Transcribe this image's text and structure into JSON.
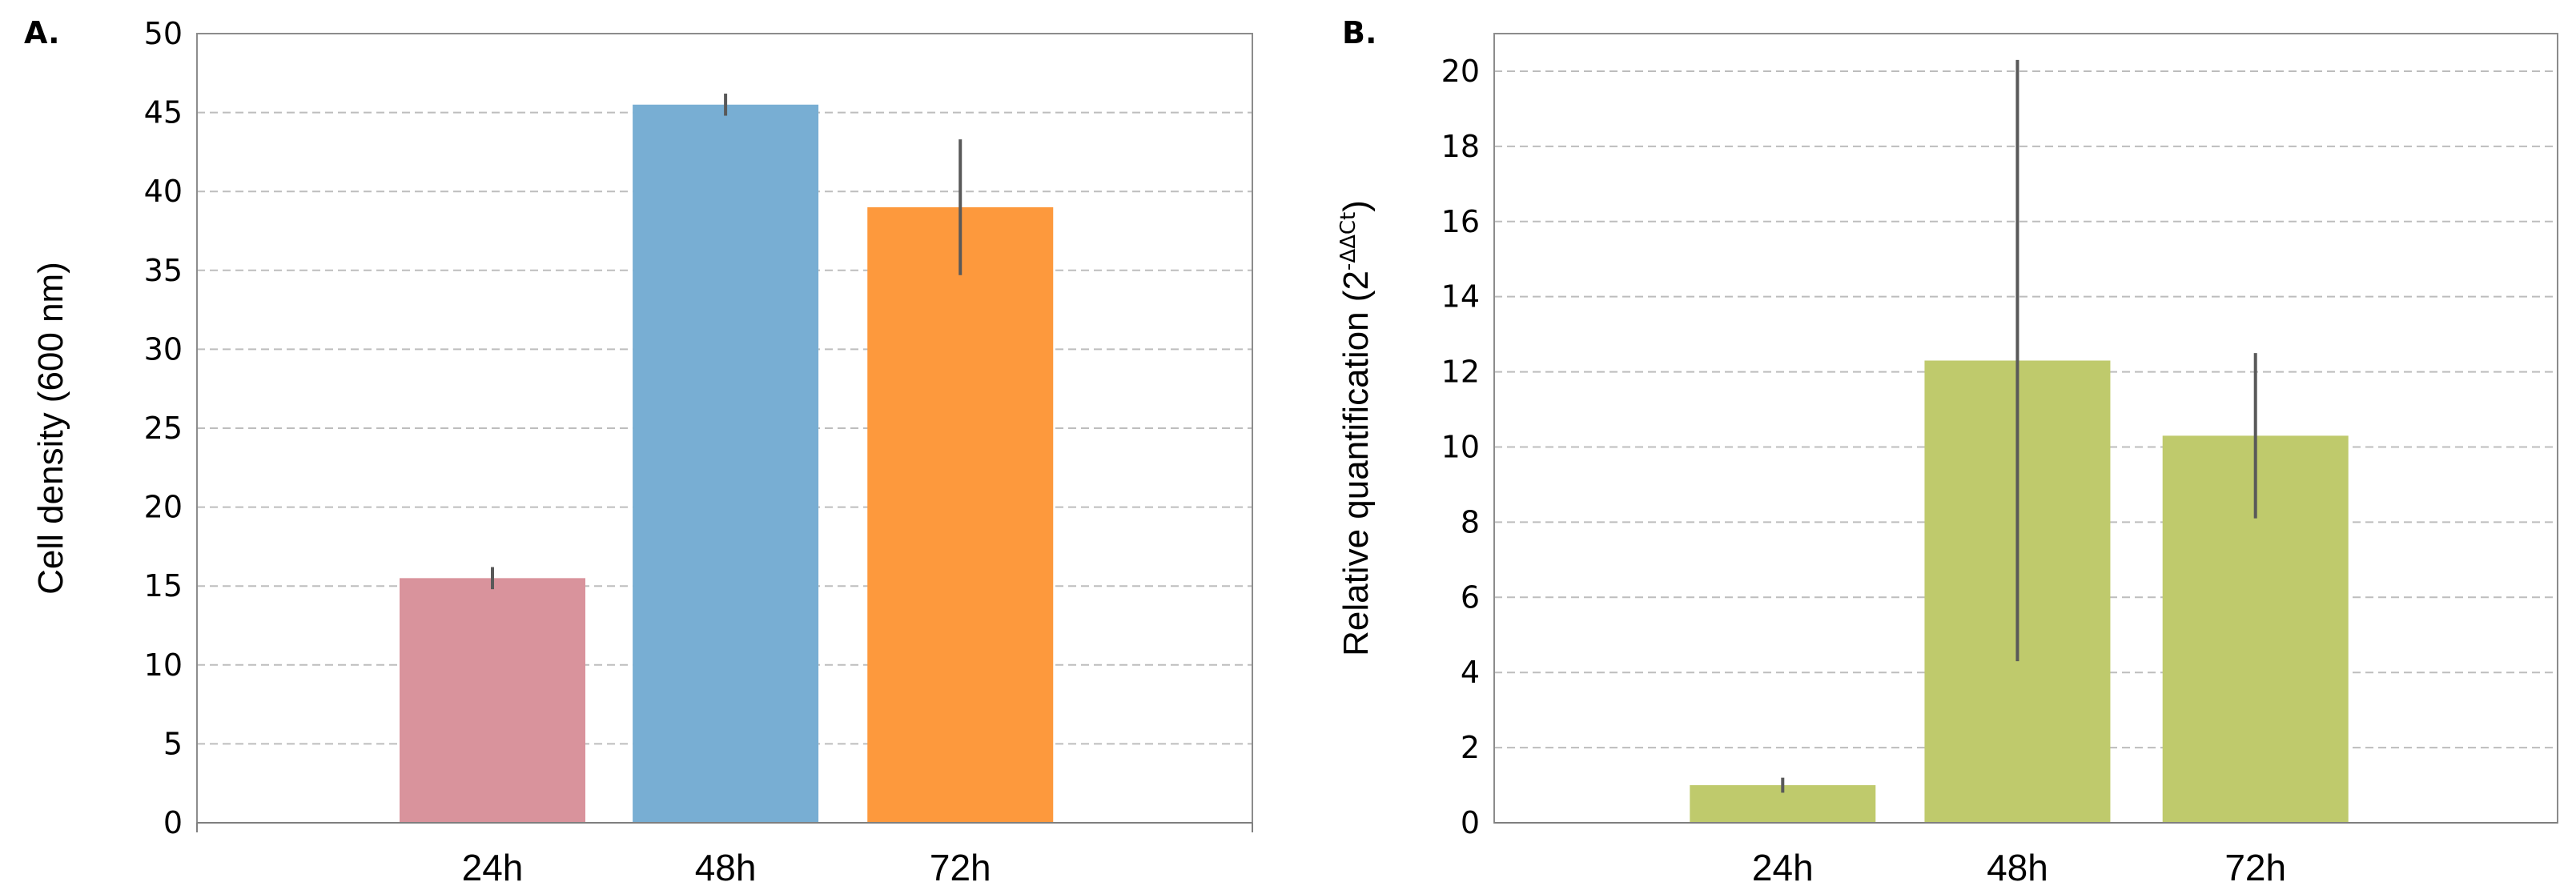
{
  "chart_data": [
    {
      "type": "bar",
      "panel_label": "A.",
      "categories": [
        "24h",
        "48h",
        "72h"
      ],
      "values": [
        15.5,
        45.5,
        39.0
      ],
      "error": [
        0.7,
        0.7,
        4.3
      ],
      "colors": [
        "#d9939c",
        "#78aed3",
        "#fd993d"
      ],
      "ylabel": "Cell density (600 nm)",
      "ylim": [
        0,
        50
      ],
      "yticks": [
        "0",
        "5",
        "10",
        "15",
        "20",
        "25",
        "30",
        "35",
        "40",
        "45",
        "50"
      ],
      "grid": true
    },
    {
      "type": "bar",
      "panel_label": "B.",
      "categories": [
        "24h",
        "48h",
        "72h"
      ],
      "values": [
        1.0,
        12.3,
        10.3
      ],
      "error": [
        0.2,
        8.0,
        2.2
      ],
      "colors": [
        "#bfca6c",
        "#bfca6c",
        "#bfca6c"
      ],
      "ylabel": "Relative quantification (2",
      "ylabel_sup": "-ΔΔCt",
      "ylabel_suffix": ")",
      "ylim": [
        0,
        21
      ],
      "yticks": [
        "0",
        "2",
        "4",
        "6",
        "8",
        "10",
        "12",
        "14",
        "16",
        "18",
        "20"
      ],
      "grid": true
    }
  ]
}
